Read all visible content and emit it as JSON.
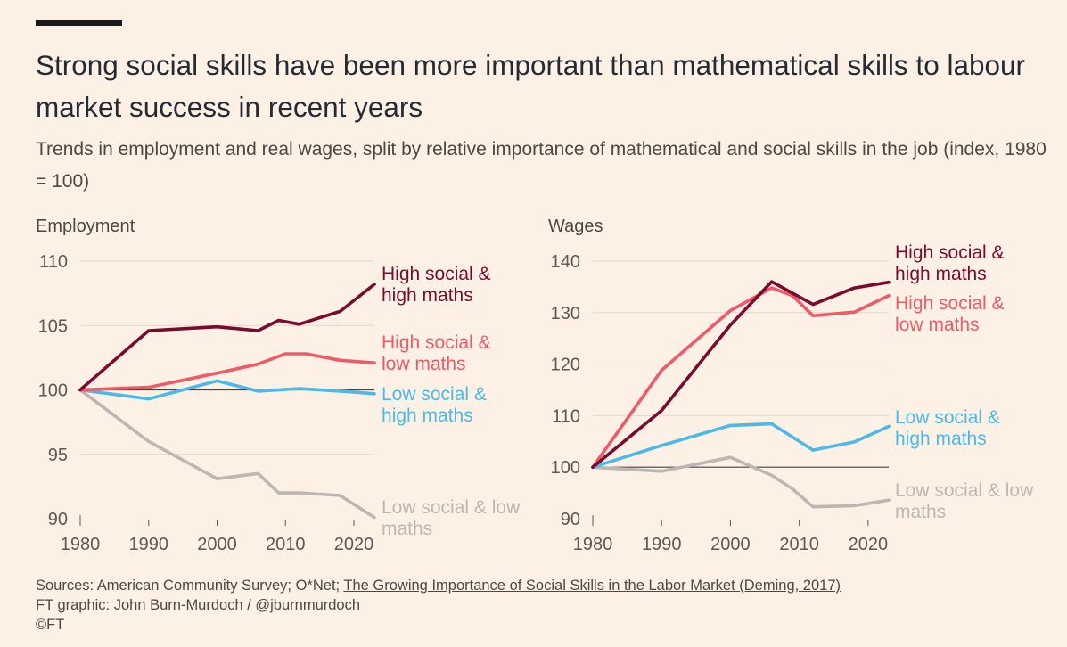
{
  "header": {
    "title": "Strong social skills have been more important than mathematical skills to labour market success in recent years",
    "subtitle": "Trends in employment and real wages, split by relative importance of mathematical and social skills in the job (index, 1980 = 100)"
  },
  "colors": {
    "hs_hm": "#7a0a2e",
    "hs_lm": "#ee5a67",
    "ls_hm": "#4cb9e6",
    "ls_lm": "#bdb6b2",
    "baseline": "#4a4440",
    "grid": "#e4d8cc",
    "axis_text": "#5f5854"
  },
  "chart_data": [
    {
      "type": "line",
      "title": "Employment",
      "xlim": [
        1980,
        2023
      ],
      "ylim": [
        90,
        110
      ],
      "x_ticks": [
        1980,
        1990,
        2000,
        2010,
        2020
      ],
      "y_ticks": [
        90,
        95,
        100,
        105,
        110
      ],
      "baseline": 100,
      "series": [
        {
          "key": "hs_hm",
          "name": "High social & high maths",
          "label_lines": [
            "High social &",
            "high maths"
          ],
          "x": [
            1980,
            1990,
            2000,
            2006,
            2009,
            2012,
            2018,
            2023
          ],
          "y": [
            100,
            104.6,
            104.9,
            104.6,
            105.4,
            105.1,
            106.1,
            108.2
          ]
        },
        {
          "key": "hs_lm",
          "name": "High social & low maths",
          "label_lines": [
            "High social &",
            "low maths"
          ],
          "x": [
            1980,
            1990,
            2000,
            2006,
            2010,
            2013,
            2018,
            2023
          ],
          "y": [
            100,
            100.2,
            101.3,
            102,
            102.8,
            102.8,
            102.3,
            102.1
          ]
        },
        {
          "key": "ls_hm",
          "name": "Low social & high maths",
          "label_lines": [
            "Low social &",
            "high maths"
          ],
          "x": [
            1980,
            1990,
            2000,
            2006,
            2012,
            2018,
            2023
          ],
          "y": [
            100,
            99.3,
            100.7,
            99.9,
            100.1,
            99.9,
            99.7
          ]
        },
        {
          "key": "ls_lm",
          "name": "Low social & low maths",
          "label_lines": [
            "Low social & low",
            "maths"
          ],
          "x": [
            1980,
            1990,
            2000,
            2006,
            2009,
            2012,
            2018,
            2023
          ],
          "y": [
            100,
            96,
            93.1,
            93.5,
            92,
            92,
            91.8,
            90.1
          ]
        }
      ]
    },
    {
      "type": "line",
      "title": "Wages",
      "xlim": [
        1980,
        2023
      ],
      "ylim": [
        90,
        140
      ],
      "x_ticks": [
        1980,
        1990,
        2000,
        2010,
        2020
      ],
      "y_ticks": [
        90,
        100,
        110,
        120,
        130,
        140
      ],
      "baseline": 100,
      "series": [
        {
          "key": "hs_hm",
          "name": "High social & high maths",
          "label_lines": [
            "High social &",
            "high maths"
          ],
          "x": [
            1980,
            1990,
            2000,
            2006,
            2012,
            2018,
            2023
          ],
          "y": [
            100,
            111,
            127.6,
            136,
            131.6,
            134.8,
            135.9
          ]
        },
        {
          "key": "hs_lm",
          "name": "High social & low maths",
          "label_lines": [
            "High social &",
            "low maths"
          ],
          "x": [
            1980,
            1990,
            2000,
            2006,
            2009,
            2012,
            2018,
            2023
          ],
          "y": [
            100,
            118.8,
            130.4,
            134.8,
            133.3,
            129.4,
            130.1,
            133.3
          ]
        },
        {
          "key": "ls_hm",
          "name": "Low social & high maths",
          "label_lines": [
            "Low social &",
            "high maths"
          ],
          "x": [
            1980,
            1990,
            2000,
            2006,
            2012,
            2018,
            2023
          ],
          "y": [
            100,
            104.2,
            108.1,
            108.4,
            103.3,
            104.9,
            107.9
          ]
        },
        {
          "key": "ls_lm",
          "name": "Low social & low maths",
          "label_lines": [
            "Low social & low",
            "maths"
          ],
          "x": [
            1980,
            1990,
            2000,
            2006,
            2009,
            2012,
            2018,
            2023
          ],
          "y": [
            100,
            99.2,
            101.9,
            98.4,
            95.8,
            92.3,
            92.5,
            93.6
          ]
        }
      ]
    }
  ],
  "footer": {
    "sources_prefix": "Sources: American Community Survey; O*Net; ",
    "sources_link": "The Growing Importance of Social Skills in the Labor Market (Deming, 2017)",
    "credit": "FT graphic: John Burn-Murdoch / @jburnmurdoch",
    "copyright": "©FT"
  }
}
